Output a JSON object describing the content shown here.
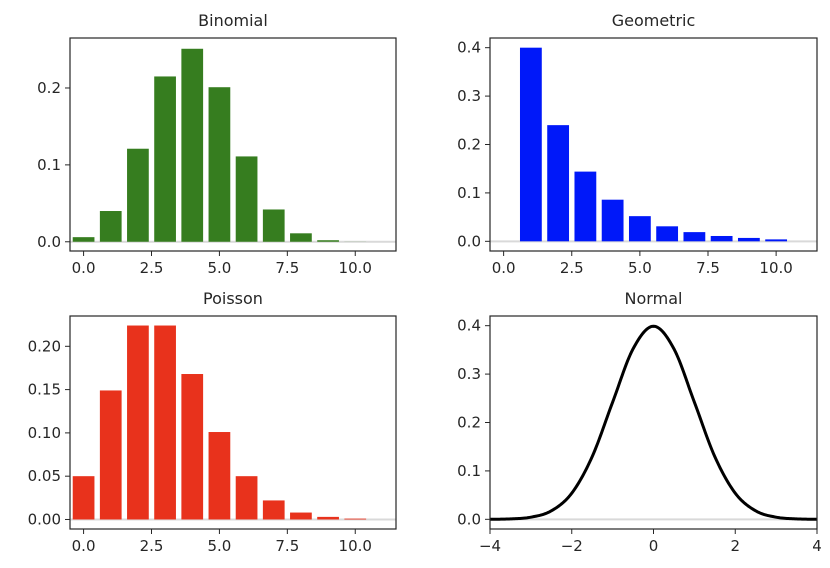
{
  "chart_data": [
    {
      "type": "bar",
      "title": "Binomial",
      "color": "#367d1f",
      "x": [
        0,
        1,
        2,
        3,
        4,
        5,
        6,
        7,
        8,
        9,
        10
      ],
      "values": [
        0.006,
        0.04,
        0.121,
        0.215,
        0.251,
        0.201,
        0.111,
        0.042,
        0.011,
        0.002,
        0.0001
      ],
      "xlim": [
        -0.5,
        11.5
      ],
      "ylim": [
        -0.012,
        0.265
      ],
      "xticks": [
        0.0,
        2.5,
        5.0,
        7.5,
        10.0
      ],
      "xtick_labels": [
        "0.0",
        "2.5",
        "5.0",
        "7.5",
        "10.0"
      ],
      "yticks": [
        0.0,
        0.1,
        0.2
      ],
      "ytick_labels": [
        "0.0",
        "0.1",
        "0.2"
      ],
      "baseline": true
    },
    {
      "type": "bar",
      "title": "Geometric",
      "color": "#0018f9",
      "x": [
        1,
        2,
        3,
        4,
        5,
        6,
        7,
        8,
        9,
        10
      ],
      "values": [
        0.4,
        0.24,
        0.144,
        0.086,
        0.052,
        0.031,
        0.019,
        0.011,
        0.007,
        0.004
      ],
      "xlim": [
        -0.5,
        11.5
      ],
      "ylim": [
        -0.02,
        0.42
      ],
      "xticks": [
        0.0,
        2.5,
        5.0,
        7.5,
        10.0
      ],
      "xtick_labels": [
        "0.0",
        "2.5",
        "5.0",
        "7.5",
        "10.0"
      ],
      "yticks": [
        0.0,
        0.1,
        0.2,
        0.3,
        0.4
      ],
      "ytick_labels": [
        "0.0",
        "0.1",
        "0.2",
        "0.3",
        "0.4"
      ],
      "baseline": true
    },
    {
      "type": "bar",
      "title": "Poisson",
      "color": "#e8321c",
      "x": [
        0,
        1,
        2,
        3,
        4,
        5,
        6,
        7,
        8,
        9,
        10
      ],
      "values": [
        0.05,
        0.149,
        0.224,
        0.224,
        0.168,
        0.101,
        0.05,
        0.022,
        0.008,
        0.003,
        0.001
      ],
      "xlim": [
        -0.5,
        11.5
      ],
      "ylim": [
        -0.011,
        0.235
      ],
      "xticks": [
        0.0,
        2.5,
        5.0,
        7.5,
        10.0
      ],
      "xtick_labels": [
        "0.0",
        "2.5",
        "5.0",
        "7.5",
        "10.0"
      ],
      "yticks": [
        0.0,
        0.05,
        0.1,
        0.15,
        0.2
      ],
      "ytick_labels": [
        "0.00",
        "0.05",
        "0.10",
        "0.15",
        "0.20"
      ],
      "baseline": true
    },
    {
      "type": "line",
      "title": "Normal",
      "color": "#000000",
      "x": [
        -4.0,
        -3.5,
        -3.0,
        -2.5,
        -2.0,
        -1.5,
        -1.0,
        -0.5,
        0.0,
        0.5,
        1.0,
        1.5,
        2.0,
        2.5,
        3.0,
        3.5,
        4.0
      ],
      "values": [
        0.0001,
        0.0009,
        0.0044,
        0.0175,
        0.054,
        0.1295,
        0.242,
        0.3521,
        0.3989,
        0.3521,
        0.242,
        0.1295,
        0.054,
        0.0175,
        0.0044,
        0.0009,
        0.0001
      ],
      "xlim": [
        -4,
        4
      ],
      "ylim": [
        -0.02,
        0.42
      ],
      "xticks": [
        -4,
        -2,
        0,
        2,
        4
      ],
      "xtick_labels": [
        "−4",
        "−2",
        "0",
        "2",
        "4"
      ],
      "yticks": [
        0.0,
        0.1,
        0.2,
        0.3,
        0.4
      ],
      "ytick_labels": [
        "0.0",
        "0.1",
        "0.2",
        "0.3",
        "0.4"
      ],
      "baseline": true
    }
  ]
}
